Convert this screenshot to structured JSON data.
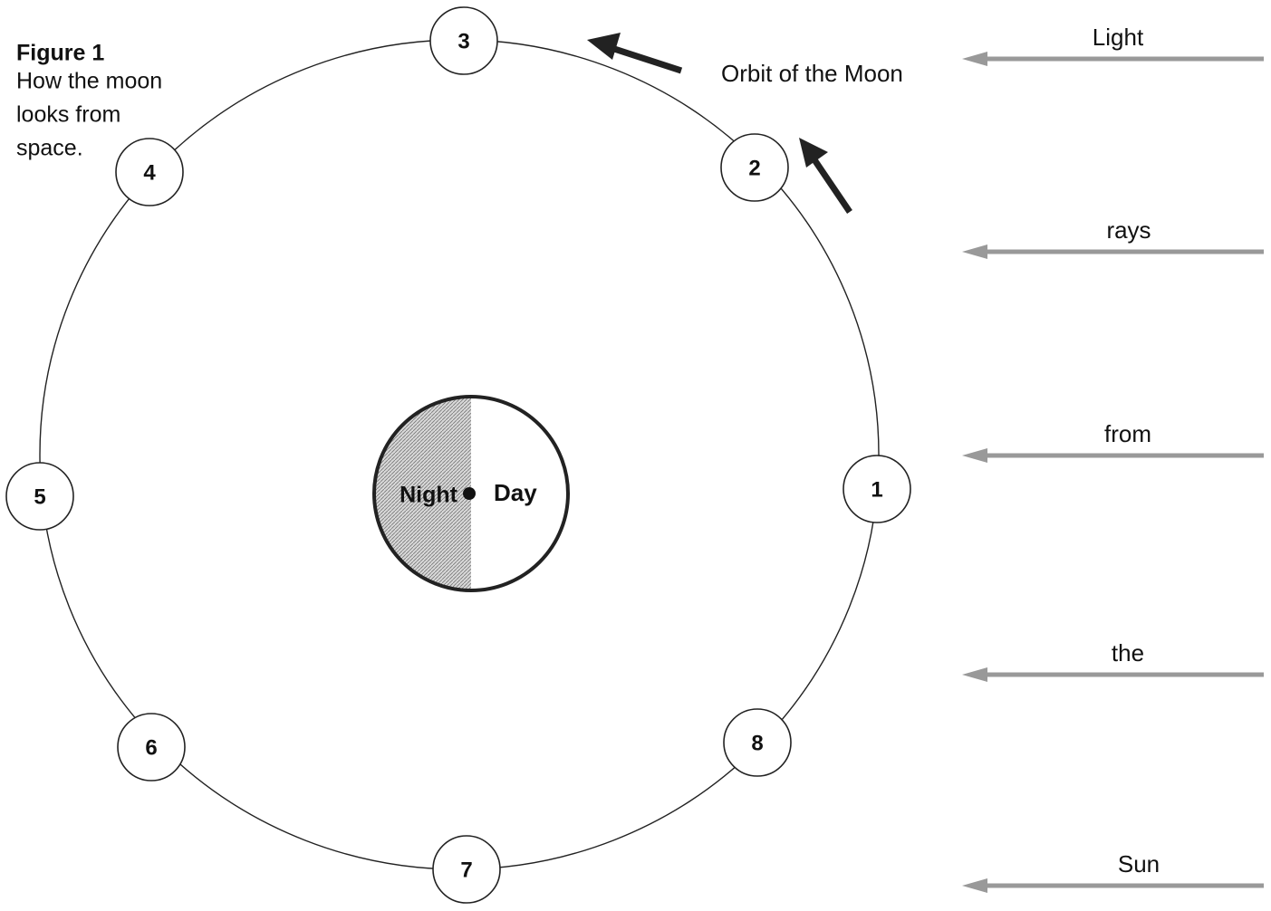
{
  "figure": {
    "title": "Figure  1",
    "caption": [
      "How the moon",
      "looks from",
      "space."
    ]
  },
  "orbit_label": "Orbit of the Moon",
  "earth": {
    "night": "Night",
    "day": "Day"
  },
  "moon_positions": [
    "1",
    "2",
    "3",
    "4",
    "5",
    "6",
    "7",
    "8"
  ],
  "light_rays": [
    "Light",
    "rays",
    "from",
    "the",
    "Sun"
  ]
}
